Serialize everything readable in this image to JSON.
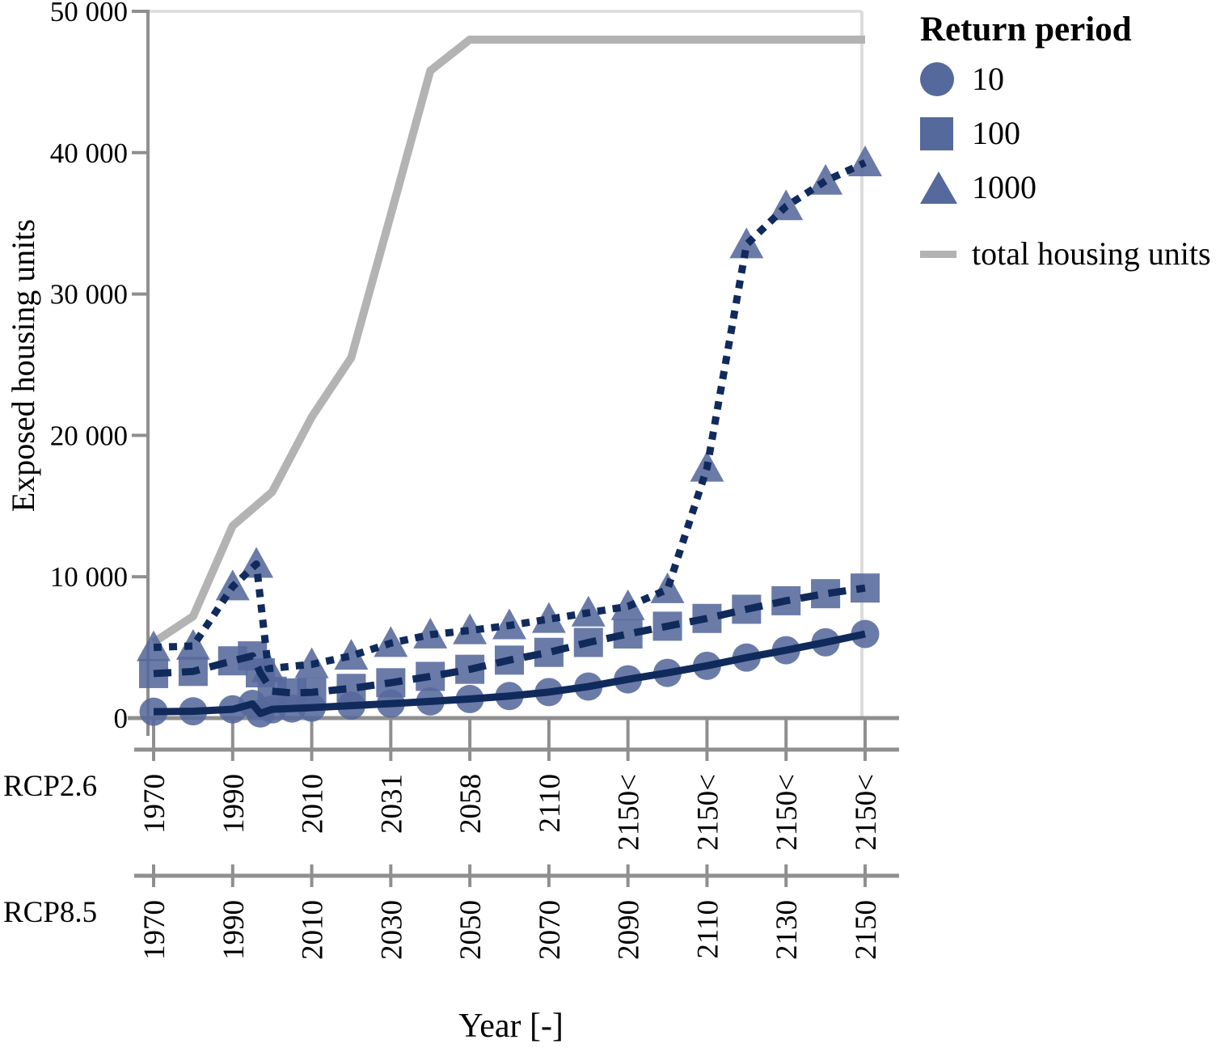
{
  "chart_data": {
    "type": "line",
    "x_axis_title": "Year [-]",
    "y_axis_title": "Exposed housing units",
    "y_range": [
      0,
      50000
    ],
    "x_range": [
      1970,
      2150
    ],
    "grid": "off",
    "legend_position": "top-right",
    "y_ticks": [
      {
        "value": 0,
        "label": "0"
      },
      {
        "value": 10000,
        "label": "10 000"
      },
      {
        "value": 20000,
        "label": "20 000"
      },
      {
        "value": 30000,
        "label": "30 000"
      },
      {
        "value": 40000,
        "label": "40 000"
      },
      {
        "value": 50000,
        "label": "50 000"
      }
    ],
    "axis_rows": [
      {
        "name": "RCP2.6",
        "labels": [
          "1970",
          "1990",
          "2010",
          "2031",
          "2058",
          "2110",
          "2150<",
          "2150<",
          "2150<",
          "2150<"
        ]
      },
      {
        "name": "RCP8.5",
        "labels": [
          "1970",
          "1990",
          "2010",
          "2030",
          "2050",
          "2070",
          "2090",
          "2110",
          "2130",
          "2150"
        ]
      }
    ],
    "legend": {
      "title": "Return period",
      "items": [
        {
          "label": "10",
          "marker": "circle"
        },
        {
          "label": "100",
          "marker": "square"
        },
        {
          "label": "1000",
          "marker": "triangle"
        },
        {
          "label": "total housing units",
          "marker": "line"
        }
      ]
    },
    "colors": {
      "marker": "#56699c",
      "line": "#102a5c",
      "total": "#b3b3b3",
      "axis": "#8f8f8f",
      "frame": "#dcdcdc"
    },
    "series": [
      {
        "name": "total housing units",
        "marker": null,
        "line_style": "solid",
        "role": "total",
        "x": [
          1970,
          1980,
          1990,
          2000,
          2010,
          2020,
          2030,
          2040,
          2050,
          2060,
          2070,
          2080,
          2090,
          2100,
          2110,
          2120,
          2130,
          2140,
          2150
        ],
        "y": [
          5350,
          7200,
          13600,
          16000,
          21300,
          25500,
          35600,
          45800,
          48000,
          48000,
          48000,
          48000,
          48000,
          48000,
          48000,
          48000,
          48000,
          48000,
          48000
        ]
      },
      {
        "name": "1000",
        "marker": "triangle",
        "line_style": "dotted",
        "role": "return-period",
        "x": [
          1970,
          1980,
          1990,
          1996,
          1999,
          2010,
          2020,
          2030,
          2040,
          2050,
          2060,
          2070,
          2080,
          2090,
          2100,
          2110,
          2120,
          2130,
          2140,
          2150
        ],
        "y": [
          5000,
          5100,
          9300,
          10900,
          3500,
          3800,
          4400,
          5300,
          5900,
          6200,
          6550,
          7000,
          7450,
          7900,
          9100,
          17700,
          33500,
          36200,
          38000,
          39300
        ]
      },
      {
        "name": "100",
        "marker": "square",
        "line_style": "dashed",
        "role": "return-period",
        "x": [
          1970,
          1980,
          1990,
          1995,
          1997,
          2000,
          2005,
          2010,
          2020,
          2030,
          2040,
          2050,
          2060,
          2070,
          2080,
          2090,
          2100,
          2110,
          2120,
          2130,
          2140,
          2150
        ],
        "y": [
          3150,
          3300,
          4050,
          4400,
          3200,
          1900,
          1780,
          1820,
          2100,
          2500,
          2950,
          3450,
          4100,
          4650,
          5350,
          5950,
          6500,
          7050,
          7700,
          8300,
          8800,
          9200
        ]
      },
      {
        "name": "10",
        "marker": "circle",
        "line_style": "solid",
        "role": "return-period",
        "x": [
          1970,
          1980,
          1990,
          1995,
          1997,
          2000,
          2005,
          2010,
          2020,
          2030,
          2040,
          2050,
          2060,
          2070,
          2080,
          2090,
          2100,
          2110,
          2120,
          2130,
          2140,
          2150
        ],
        "y": [
          450,
          480,
          620,
          1000,
          330,
          620,
          680,
          740,
          880,
          1020,
          1180,
          1350,
          1560,
          1840,
          2230,
          2740,
          3200,
          3700,
          4280,
          4800,
          5360,
          5950
        ]
      }
    ]
  }
}
